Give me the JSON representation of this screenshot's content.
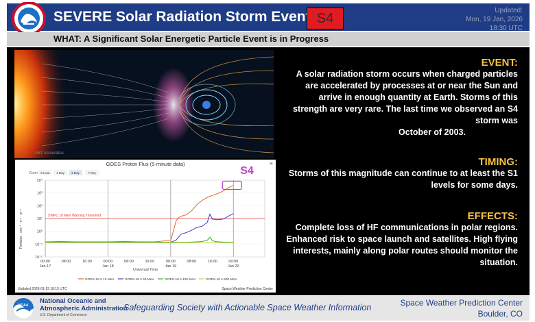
{
  "header": {
    "title": "SEVERE Solar Radiation Storm Event",
    "badge": "S4",
    "updated_label": "Updated:",
    "updated_date": "Mon, 19 Jan, 2026",
    "updated_time": "18:30 UTC"
  },
  "what_bar": {
    "text": "WHAT: A Significant Solar Energetic Particle Event is in Progress"
  },
  "artwork": {
    "credit": "ABT Associates"
  },
  "chart_data": {
    "type": "line",
    "title": "GOES Proton Flux (5-minute data)",
    "zoom_label": "Zoom",
    "zoom_buttons": [
      "6 Hour",
      "1 Day",
      "3 Day",
      "7 Day"
    ],
    "zoom_selected": "3 Day",
    "annotation": "S4",
    "threshold_label": "SWPC 10 MeV Warning Threshold",
    "threshold_value": 10,
    "xlabel": "Universal Time",
    "ylabel": "Particles · cm⁻² · s⁻¹ · sr⁻¹",
    "yscale": "log",
    "ylim": [
      0.01,
      10000
    ],
    "y_ticks": [
      "10⁴",
      "10³",
      "10²",
      "10¹",
      "10⁰",
      "10⁻¹",
      "10⁻²"
    ],
    "xlim": [
      0,
      84
    ],
    "x_ticks": [
      {
        "time": "00:00",
        "date": "Jan 17"
      },
      {
        "time": "08:00",
        "date": ""
      },
      {
        "time": "16:00",
        "date": ""
      },
      {
        "time": "00:00",
        "date": "Jan 18"
      },
      {
        "time": "08:00",
        "date": ""
      },
      {
        "time": "16:00",
        "date": ""
      },
      {
        "time": "00:00",
        "date": "Jan 19"
      },
      {
        "time": "08:00",
        "date": ""
      },
      {
        "time": "16:00",
        "date": ""
      },
      {
        "time": "00:00",
        "date": "Jan 20"
      }
    ],
    "series": [
      {
        "name": "GOES-18 ≥ 10 MeV",
        "color": "#e8622c",
        "x": [
          0,
          6,
          12,
          18,
          24,
          30,
          36,
          42,
          48,
          49,
          50,
          51,
          52,
          54,
          56,
          58,
          60,
          62,
          64,
          66,
          68,
          70,
          72
        ],
        "y": [
          0.15,
          0.16,
          0.15,
          0.15,
          0.15,
          0.16,
          0.15,
          0.15,
          0.2,
          1,
          6,
          12,
          15,
          20,
          40,
          120,
          260,
          450,
          650,
          900,
          1400,
          2500,
          4000
        ]
      },
      {
        "name": "GOES-18 ≥ 50 MeV",
        "color": "#3b3fcf",
        "x": [
          0,
          12,
          24,
          36,
          46,
          48,
          50,
          52,
          54,
          56,
          58,
          60,
          62,
          63,
          64,
          66,
          68,
          70,
          72
        ],
        "y": [
          0.14,
          0.14,
          0.14,
          0.14,
          0.14,
          0.14,
          0.2,
          0.6,
          0.8,
          1.2,
          2,
          2.5,
          5,
          22,
          9,
          8,
          9,
          15,
          25
        ]
      },
      {
        "name": "GOES-18 ≥ 100 MeV",
        "color": "#3aa832",
        "x": [
          0,
          12,
          24,
          36,
          48,
          54,
          58,
          60,
          62,
          63,
          64,
          66,
          70,
          72
        ],
        "y": [
          0.14,
          0.14,
          0.14,
          0.14,
          0.14,
          0.14,
          0.15,
          0.16,
          0.2,
          0.35,
          0.18,
          0.15,
          0.14,
          0.14
        ]
      },
      {
        "name": "GOES-18 ≥ 500 MeV",
        "color": "#c8d23a",
        "x": [
          0,
          24,
          48,
          60,
          72
        ],
        "y": [
          0.13,
          0.13,
          0.13,
          0.13,
          0.13
        ]
      }
    ],
    "updated": "Updated 2026-01-19 18:15 UTC",
    "credit": "Space Weather Prediction Center"
  },
  "event": {
    "heading": "EVENT:",
    "body": "A solar radiation storm occurs when charged particles are accelerated by processes at or near the Sun and arrive in enough quantity at Earth. Storms of this strength are very rare. The last time we observed an S4 storm was",
    "body_end": "October of 2003."
  },
  "timing": {
    "heading": "TIMING:",
    "body": "Storms of this magnitude can continue to at least the S1 levels for some days."
  },
  "effects": {
    "heading": "EFFECTS:",
    "body": "Complete loss of HF communications in polar regions. Enhanced risk to space launch and satellites. High flying interests, mainly along polar routes should monitor the situation."
  },
  "footer": {
    "noaa_line1": "National Oceanic and",
    "noaa_line2": "Atmospheric Administration",
    "noaa_dept": "U.S. Department of Commerce",
    "tagline": "Safeguarding Society with Actionable Space Weather Information",
    "swpc_line1": "Space Weather Prediction Center",
    "swpc_line2": "Boulder, CO"
  },
  "colors": {
    "header_bg": "#1f3c86",
    "badge_red": "#e11b22",
    "heading_gold": "#f5c242",
    "panel_bg": "#000000",
    "s4_annotation": "#c040c8",
    "threshold_line": "#e03a3a"
  },
  "icons": [
    "nws-logo",
    "noaa-logo"
  ]
}
